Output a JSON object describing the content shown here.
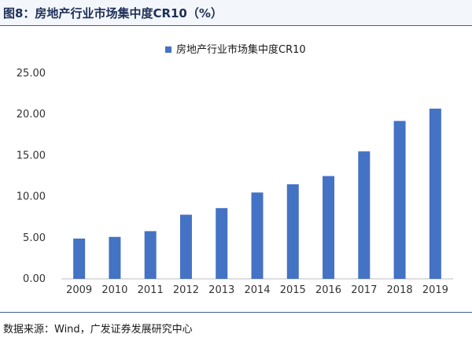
{
  "header": {
    "title": "图8：房地产行业市场集中度CR10（%）"
  },
  "footer": {
    "source": "数据来源：Wind，广发证券发展研究中心"
  },
  "chart_data": {
    "type": "bar",
    "categories": [
      "2009",
      "2010",
      "2011",
      "2012",
      "2013",
      "2014",
      "2015",
      "2016",
      "2017",
      "2018",
      "2019"
    ],
    "series": [
      {
        "name": "房地产行业市场集中度CR10",
        "values": [
          4.9,
          5.1,
          5.8,
          7.8,
          8.6,
          10.5,
          11.5,
          12.5,
          15.5,
          19.2,
          20.7
        ]
      }
    ],
    "ylim": [
      0,
      25
    ],
    "yticks": [
      "0.00",
      "5.00",
      "10.00",
      "15.00",
      "20.00",
      "25.00"
    ],
    "grid": false,
    "legend_position": "top-center",
    "bar_color": "#4472c4",
    "axis_color": "#bfbfbf"
  }
}
